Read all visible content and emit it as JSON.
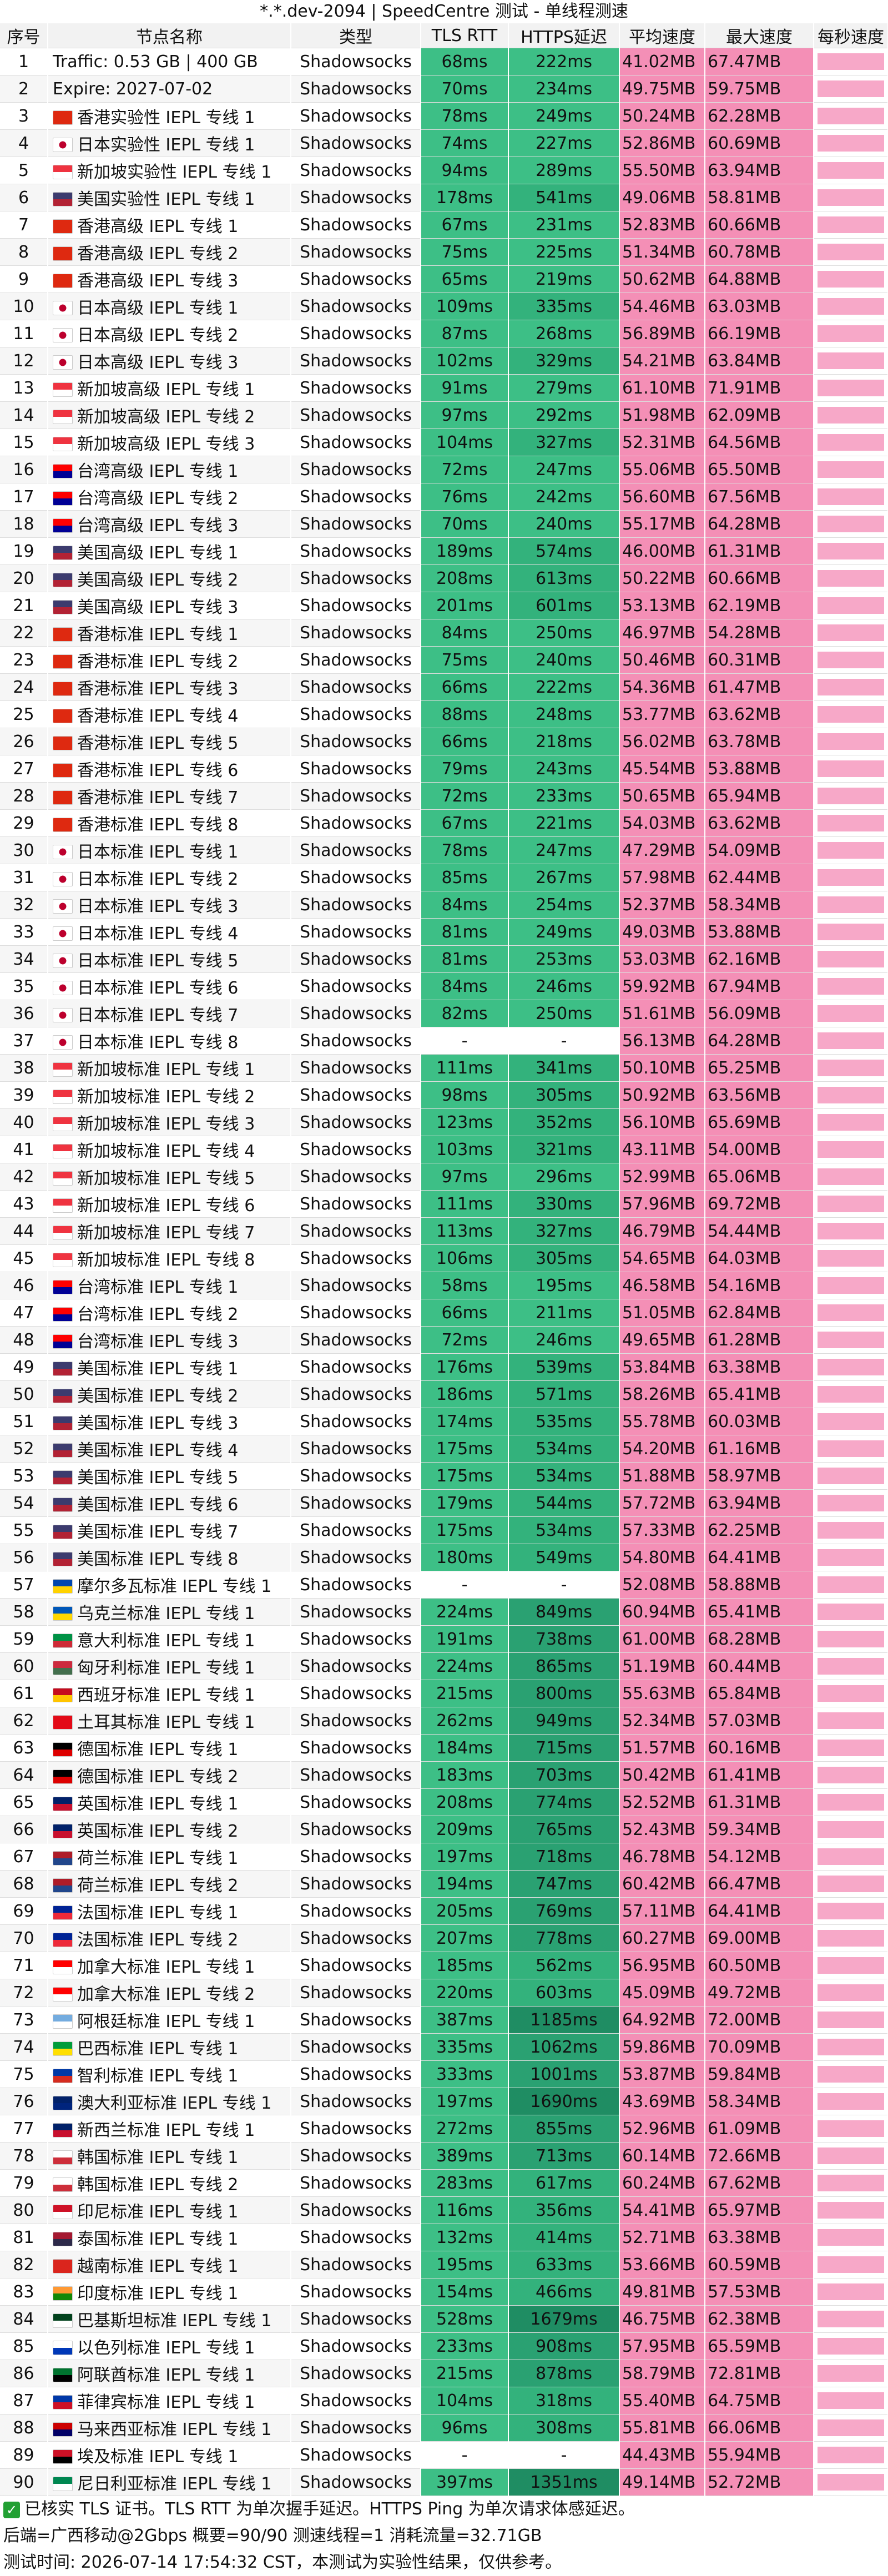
{
  "title": "*.*.dev-2094 | SpeedCentre 测试 - 单线程测速",
  "headers": {
    "id": "序号",
    "name": "节点名称",
    "type": "类型",
    "tls": "TLS RTT",
    "ping": "HTTPS延迟",
    "avg": "平均速度",
    "max": "最大速度",
    "ppm": "每秒速度"
  },
  "colors": {
    "tls_green": "#3dbf86",
    "ping_green": "#2faa76",
    "speed_pink": "#f48fb6",
    "header_bg": "#f2f2f2"
  },
  "rows": [
    {
      "id": "1",
      "name": "Traffic: 0.53 GB | 400 GB",
      "flag": "",
      "type": "Shadowsocks",
      "tls": "68ms",
      "ping": "222ms",
      "avg": "41.02MB",
      "max": "67.47MB"
    },
    {
      "id": "2",
      "name": "Expire: 2027-07-02",
      "flag": "",
      "type": "Shadowsocks",
      "tls": "70ms",
      "ping": "234ms",
      "avg": "49.75MB",
      "max": "59.75MB"
    },
    {
      "id": "3",
      "name": "香港实验性 IEPL 专线 1",
      "flag": "hk",
      "type": "Shadowsocks",
      "tls": "78ms",
      "ping": "249ms",
      "avg": "50.24MB",
      "max": "62.28MB"
    },
    {
      "id": "4",
      "name": "日本实验性 IEPL 专线 1",
      "flag": "jp",
      "type": "Shadowsocks",
      "tls": "74ms",
      "ping": "227ms",
      "avg": "52.86MB",
      "max": "60.69MB"
    },
    {
      "id": "5",
      "name": "新加坡实验性 IEPL 专线 1",
      "flag": "sg",
      "type": "Shadowsocks",
      "tls": "94ms",
      "ping": "289ms",
      "avg": "55.50MB",
      "max": "63.94MB"
    },
    {
      "id": "6",
      "name": "美国实验性 IEPL 专线 1",
      "flag": "us",
      "type": "Shadowsocks",
      "tls": "178ms",
      "ping": "541ms",
      "avg": "49.06MB",
      "max": "58.81MB"
    },
    {
      "id": "7",
      "name": "香港高级 IEPL 专线 1",
      "flag": "hk",
      "type": "Shadowsocks",
      "tls": "67ms",
      "ping": "231ms",
      "avg": "52.83MB",
      "max": "60.66MB"
    },
    {
      "id": "8",
      "name": "香港高级 IEPL 专线 2",
      "flag": "hk",
      "type": "Shadowsocks",
      "tls": "75ms",
      "ping": "225ms",
      "avg": "51.34MB",
      "max": "60.78MB"
    },
    {
      "id": "9",
      "name": "香港高级 IEPL 专线 3",
      "flag": "hk",
      "type": "Shadowsocks",
      "tls": "65ms",
      "ping": "219ms",
      "avg": "50.62MB",
      "max": "64.88MB"
    },
    {
      "id": "10",
      "name": "日本高级 IEPL 专线 1",
      "flag": "jp",
      "type": "Shadowsocks",
      "tls": "109ms",
      "ping": "335ms",
      "avg": "54.46MB",
      "max": "63.03MB"
    },
    {
      "id": "11",
      "name": "日本高级 IEPL 专线 2",
      "flag": "jp",
      "type": "Shadowsocks",
      "tls": "87ms",
      "ping": "268ms",
      "avg": "56.89MB",
      "max": "66.19MB"
    },
    {
      "id": "12",
      "name": "日本高级 IEPL 专线 3",
      "flag": "jp",
      "type": "Shadowsocks",
      "tls": "102ms",
      "ping": "329ms",
      "avg": "54.21MB",
      "max": "63.84MB"
    },
    {
      "id": "13",
      "name": "新加坡高级 IEPL 专线 1",
      "flag": "sg",
      "type": "Shadowsocks",
      "tls": "91ms",
      "ping": "279ms",
      "avg": "61.10MB",
      "max": "71.91MB"
    },
    {
      "id": "14",
      "name": "新加坡高级 IEPL 专线 2",
      "flag": "sg",
      "type": "Shadowsocks",
      "tls": "97ms",
      "ping": "292ms",
      "avg": "51.98MB",
      "max": "62.09MB"
    },
    {
      "id": "15",
      "name": "新加坡高级 IEPL 专线 3",
      "flag": "sg",
      "type": "Shadowsocks",
      "tls": "104ms",
      "ping": "327ms",
      "avg": "52.31MB",
      "max": "64.56MB"
    },
    {
      "id": "16",
      "name": "台湾高级 IEPL 专线 1",
      "flag": "tw",
      "type": "Shadowsocks",
      "tls": "72ms",
      "ping": "247ms",
      "avg": "55.06MB",
      "max": "65.50MB"
    },
    {
      "id": "17",
      "name": "台湾高级 IEPL 专线 2",
      "flag": "tw",
      "type": "Shadowsocks",
      "tls": "76ms",
      "ping": "242ms",
      "avg": "56.60MB",
      "max": "67.56MB"
    },
    {
      "id": "18",
      "name": "台湾高级 IEPL 专线 3",
      "flag": "tw",
      "type": "Shadowsocks",
      "tls": "70ms",
      "ping": "240ms",
      "avg": "55.17MB",
      "max": "64.28MB"
    },
    {
      "id": "19",
      "name": "美国高级 IEPL 专线 1",
      "flag": "us",
      "type": "Shadowsocks",
      "tls": "189ms",
      "ping": "574ms",
      "avg": "46.00MB",
      "max": "61.31MB"
    },
    {
      "id": "20",
      "name": "美国高级 IEPL 专线 2",
      "flag": "us",
      "type": "Shadowsocks",
      "tls": "208ms",
      "ping": "613ms",
      "avg": "50.22MB",
      "max": "60.66MB"
    },
    {
      "id": "21",
      "name": "美国高级 IEPL 专线 3",
      "flag": "us",
      "type": "Shadowsocks",
      "tls": "201ms",
      "ping": "601ms",
      "avg": "53.13MB",
      "max": "62.19MB"
    },
    {
      "id": "22",
      "name": "香港标准 IEPL 专线 1",
      "flag": "hk",
      "type": "Shadowsocks",
      "tls": "84ms",
      "ping": "250ms",
      "avg": "46.97MB",
      "max": "54.28MB"
    },
    {
      "id": "23",
      "name": "香港标准 IEPL 专线 2",
      "flag": "hk",
      "type": "Shadowsocks",
      "tls": "75ms",
      "ping": "240ms",
      "avg": "50.46MB",
      "max": "60.31MB"
    },
    {
      "id": "24",
      "name": "香港标准 IEPL 专线 3",
      "flag": "hk",
      "type": "Shadowsocks",
      "tls": "66ms",
      "ping": "222ms",
      "avg": "54.36MB",
      "max": "61.47MB"
    },
    {
      "id": "25",
      "name": "香港标准 IEPL 专线 4",
      "flag": "hk",
      "type": "Shadowsocks",
      "tls": "88ms",
      "ping": "248ms",
      "avg": "53.77MB",
      "max": "63.62MB"
    },
    {
      "id": "26",
      "name": "香港标准 IEPL 专线 5",
      "flag": "hk",
      "type": "Shadowsocks",
      "tls": "66ms",
      "ping": "218ms",
      "avg": "56.02MB",
      "max": "63.78MB"
    },
    {
      "id": "27",
      "name": "香港标准 IEPL 专线 6",
      "flag": "hk",
      "type": "Shadowsocks",
      "tls": "79ms",
      "ping": "243ms",
      "avg": "45.54MB",
      "max": "53.88MB"
    },
    {
      "id": "28",
      "name": "香港标准 IEPL 专线 7",
      "flag": "hk",
      "type": "Shadowsocks",
      "tls": "72ms",
      "ping": "233ms",
      "avg": "50.65MB",
      "max": "65.94MB"
    },
    {
      "id": "29",
      "name": "香港标准 IEPL 专线 8",
      "flag": "hk",
      "type": "Shadowsocks",
      "tls": "67ms",
      "ping": "221ms",
      "avg": "54.03MB",
      "max": "63.62MB"
    },
    {
      "id": "30",
      "name": "日本标准 IEPL 专线 1",
      "flag": "jp",
      "type": "Shadowsocks",
      "tls": "78ms",
      "ping": "247ms",
      "avg": "47.29MB",
      "max": "54.09MB"
    },
    {
      "id": "31",
      "name": "日本标准 IEPL 专线 2",
      "flag": "jp",
      "type": "Shadowsocks",
      "tls": "85ms",
      "ping": "267ms",
      "avg": "57.98MB",
      "max": "62.44MB"
    },
    {
      "id": "32",
      "name": "日本标准 IEPL 专线 3",
      "flag": "jp",
      "type": "Shadowsocks",
      "tls": "84ms",
      "ping": "254ms",
      "avg": "52.37MB",
      "max": "58.34MB"
    },
    {
      "id": "33",
      "name": "日本标准 IEPL 专线 4",
      "flag": "jp",
      "type": "Shadowsocks",
      "tls": "81ms",
      "ping": "249ms",
      "avg": "49.03MB",
      "max": "53.88MB"
    },
    {
      "id": "34",
      "name": "日本标准 IEPL 专线 5",
      "flag": "jp",
      "type": "Shadowsocks",
      "tls": "81ms",
      "ping": "253ms",
      "avg": "53.03MB",
      "max": "62.16MB"
    },
    {
      "id": "35",
      "name": "日本标准 IEPL 专线 6",
      "flag": "jp",
      "type": "Shadowsocks",
      "tls": "84ms",
      "ping": "246ms",
      "avg": "59.92MB",
      "max": "67.94MB"
    },
    {
      "id": "36",
      "name": "日本标准 IEPL 专线 7",
      "flag": "jp",
      "type": "Shadowsocks",
      "tls": "82ms",
      "ping": "250ms",
      "avg": "51.61MB",
      "max": "56.09MB"
    },
    {
      "id": "37",
      "name": "日本标准 IEPL 专线 8",
      "flag": "jp",
      "type": "Shadowsocks",
      "tls": "-",
      "ping": "-",
      "avg": "56.13MB",
      "max": "64.28MB"
    },
    {
      "id": "38",
      "name": "新加坡标准 IEPL 专线 1",
      "flag": "sg",
      "type": "Shadowsocks",
      "tls": "111ms",
      "ping": "341ms",
      "avg": "50.10MB",
      "max": "65.25MB"
    },
    {
      "id": "39",
      "name": "新加坡标准 IEPL 专线 2",
      "flag": "sg",
      "type": "Shadowsocks",
      "tls": "98ms",
      "ping": "305ms",
      "avg": "50.92MB",
      "max": "63.56MB"
    },
    {
      "id": "40",
      "name": "新加坡标准 IEPL 专线 3",
      "flag": "sg",
      "type": "Shadowsocks",
      "tls": "123ms",
      "ping": "352ms",
      "avg": "56.10MB",
      "max": "65.69MB"
    },
    {
      "id": "41",
      "name": "新加坡标准 IEPL 专线 4",
      "flag": "sg",
      "type": "Shadowsocks",
      "tls": "103ms",
      "ping": "321ms",
      "avg": "43.11MB",
      "max": "54.00MB"
    },
    {
      "id": "42",
      "name": "新加坡标准 IEPL 专线 5",
      "flag": "sg",
      "type": "Shadowsocks",
      "tls": "97ms",
      "ping": "296ms",
      "avg": "52.99MB",
      "max": "65.06MB"
    },
    {
      "id": "43",
      "name": "新加坡标准 IEPL 专线 6",
      "flag": "sg",
      "type": "Shadowsocks",
      "tls": "111ms",
      "ping": "330ms",
      "avg": "57.96MB",
      "max": "69.72MB"
    },
    {
      "id": "44",
      "name": "新加坡标准 IEPL 专线 7",
      "flag": "sg",
      "type": "Shadowsocks",
      "tls": "113ms",
      "ping": "327ms",
      "avg": "46.79MB",
      "max": "54.44MB"
    },
    {
      "id": "45",
      "name": "新加坡标准 IEPL 专线 8",
      "flag": "sg",
      "type": "Shadowsocks",
      "tls": "106ms",
      "ping": "305ms",
      "avg": "54.65MB",
      "max": "64.03MB"
    },
    {
      "id": "46",
      "name": "台湾标准 IEPL 专线 1",
      "flag": "tw",
      "type": "Shadowsocks",
      "tls": "58ms",
      "ping": "195ms",
      "avg": "46.58MB",
      "max": "54.16MB"
    },
    {
      "id": "47",
      "name": "台湾标准 IEPL 专线 2",
      "flag": "tw",
      "type": "Shadowsocks",
      "tls": "66ms",
      "ping": "211ms",
      "avg": "51.05MB",
      "max": "62.84MB"
    },
    {
      "id": "48",
      "name": "台湾标准 IEPL 专线 3",
      "flag": "tw",
      "type": "Shadowsocks",
      "tls": "72ms",
      "ping": "246ms",
      "avg": "49.65MB",
      "max": "61.28MB"
    },
    {
      "id": "49",
      "name": "美国标准 IEPL 专线 1",
      "flag": "us",
      "type": "Shadowsocks",
      "tls": "176ms",
      "ping": "539ms",
      "avg": "53.84MB",
      "max": "63.38MB"
    },
    {
      "id": "50",
      "name": "美国标准 IEPL 专线 2",
      "flag": "us",
      "type": "Shadowsocks",
      "tls": "186ms",
      "ping": "571ms",
      "avg": "58.26MB",
      "max": "65.41MB"
    },
    {
      "id": "51",
      "name": "美国标准 IEPL 专线 3",
      "flag": "us",
      "type": "Shadowsocks",
      "tls": "174ms",
      "ping": "535ms",
      "avg": "55.78MB",
      "max": "60.03MB"
    },
    {
      "id": "52",
      "name": "美国标准 IEPL 专线 4",
      "flag": "us",
      "type": "Shadowsocks",
      "tls": "175ms",
      "ping": "534ms",
      "avg": "54.20MB",
      "max": "61.16MB"
    },
    {
      "id": "53",
      "name": "美国标准 IEPL 专线 5",
      "flag": "us",
      "type": "Shadowsocks",
      "tls": "175ms",
      "ping": "534ms",
      "avg": "51.88MB",
      "max": "58.97MB"
    },
    {
      "id": "54",
      "name": "美国标准 IEPL 专线 6",
      "flag": "us",
      "type": "Shadowsocks",
      "tls": "179ms",
      "ping": "544ms",
      "avg": "57.72MB",
      "max": "63.94MB"
    },
    {
      "id": "55",
      "name": "美国标准 IEPL 专线 7",
      "flag": "us",
      "type": "Shadowsocks",
      "tls": "175ms",
      "ping": "534ms",
      "avg": "57.33MB",
      "max": "62.25MB"
    },
    {
      "id": "56",
      "name": "美国标准 IEPL 专线 8",
      "flag": "us",
      "type": "Shadowsocks",
      "tls": "180ms",
      "ping": "549ms",
      "avg": "54.80MB",
      "max": "64.41MB"
    },
    {
      "id": "57",
      "name": "摩尔多瓦标准 IEPL 专线 1",
      "flag": "md",
      "type": "Shadowsocks",
      "tls": "-",
      "ping": "-",
      "avg": "52.08MB",
      "max": "58.88MB"
    },
    {
      "id": "58",
      "name": "乌克兰标准 IEPL 专线 1",
      "flag": "ua",
      "type": "Shadowsocks",
      "tls": "224ms",
      "ping": "849ms",
      "avg": "60.94MB",
      "max": "65.41MB"
    },
    {
      "id": "59",
      "name": "意大利标准 IEPL 专线 1",
      "flag": "it",
      "type": "Shadowsocks",
      "tls": "191ms",
      "ping": "738ms",
      "avg": "61.00MB",
      "max": "68.28MB"
    },
    {
      "id": "60",
      "name": "匈牙利标准 IEPL 专线 1",
      "flag": "hu",
      "type": "Shadowsocks",
      "tls": "224ms",
      "ping": "865ms",
      "avg": "51.19MB",
      "max": "60.44MB"
    },
    {
      "id": "61",
      "name": "西班牙标准 IEPL 专线 1",
      "flag": "es",
      "type": "Shadowsocks",
      "tls": "215ms",
      "ping": "800ms",
      "avg": "55.63MB",
      "max": "65.84MB"
    },
    {
      "id": "62",
      "name": "土耳其标准 IEPL 专线 1",
      "flag": "tr",
      "type": "Shadowsocks",
      "tls": "262ms",
      "ping": "949ms",
      "avg": "52.34MB",
      "max": "57.03MB"
    },
    {
      "id": "63",
      "name": "德国标准 IEPL 专线 1",
      "flag": "de",
      "type": "Shadowsocks",
      "tls": "184ms",
      "ping": "715ms",
      "avg": "51.57MB",
      "max": "60.16MB"
    },
    {
      "id": "64",
      "name": "德国标准 IEPL 专线 2",
      "flag": "de",
      "type": "Shadowsocks",
      "tls": "183ms",
      "ping": "703ms",
      "avg": "50.42MB",
      "max": "61.41MB"
    },
    {
      "id": "65",
      "name": "英国标准 IEPL 专线 1",
      "flag": "gb",
      "type": "Shadowsocks",
      "tls": "208ms",
      "ping": "774ms",
      "avg": "52.52MB",
      "max": "61.31MB"
    },
    {
      "id": "66",
      "name": "英国标准 IEPL 专线 2",
      "flag": "gb",
      "type": "Shadowsocks",
      "tls": "209ms",
      "ping": "765ms",
      "avg": "52.43MB",
      "max": "59.34MB"
    },
    {
      "id": "67",
      "name": "荷兰标准 IEPL 专线 1",
      "flag": "nl",
      "type": "Shadowsocks",
      "tls": "197ms",
      "ping": "718ms",
      "avg": "46.78MB",
      "max": "54.12MB"
    },
    {
      "id": "68",
      "name": "荷兰标准 IEPL 专线 2",
      "flag": "nl",
      "type": "Shadowsocks",
      "tls": "194ms",
      "ping": "747ms",
      "avg": "60.42MB",
      "max": "66.47MB"
    },
    {
      "id": "69",
      "name": "法国标准 IEPL 专线 1",
      "flag": "fr",
      "type": "Shadowsocks",
      "tls": "205ms",
      "ping": "769ms",
      "avg": "57.11MB",
      "max": "64.41MB"
    },
    {
      "id": "70",
      "name": "法国标准 IEPL 专线 2",
      "flag": "fr",
      "type": "Shadowsocks",
      "tls": "207ms",
      "ping": "778ms",
      "avg": "60.27MB",
      "max": "69.00MB"
    },
    {
      "id": "71",
      "name": "加拿大标准 IEPL 专线 1",
      "flag": "ca",
      "type": "Shadowsocks",
      "tls": "185ms",
      "ping": "562ms",
      "avg": "56.95MB",
      "max": "60.50MB"
    },
    {
      "id": "72",
      "name": "加拿大标准 IEPL 专线 2",
      "flag": "ca",
      "type": "Shadowsocks",
      "tls": "220ms",
      "ping": "603ms",
      "avg": "45.09MB",
      "max": "49.72MB"
    },
    {
      "id": "73",
      "name": "阿根廷标准 IEPL 专线 1",
      "flag": "ar",
      "type": "Shadowsocks",
      "tls": "387ms",
      "ping": "1185ms",
      "avg": "64.92MB",
      "max": "72.00MB"
    },
    {
      "id": "74",
      "name": "巴西标准 IEPL 专线 1",
      "flag": "br",
      "type": "Shadowsocks",
      "tls": "335ms",
      "ping": "1062ms",
      "avg": "59.86MB",
      "max": "70.09MB"
    },
    {
      "id": "75",
      "name": "智利标准 IEPL 专线 1",
      "flag": "cl",
      "type": "Shadowsocks",
      "tls": "333ms",
      "ping": "1001ms",
      "avg": "53.87MB",
      "max": "59.84MB"
    },
    {
      "id": "76",
      "name": "澳大利亚标准 IEPL 专线 1",
      "flag": "au",
      "type": "Shadowsocks",
      "tls": "197ms",
      "ping": "1690ms",
      "avg": "43.69MB",
      "max": "58.34MB"
    },
    {
      "id": "77",
      "name": "新西兰标准 IEPL 专线 1",
      "flag": "nz",
      "type": "Shadowsocks",
      "tls": "272ms",
      "ping": "855ms",
      "avg": "52.96MB",
      "max": "61.09MB"
    },
    {
      "id": "78",
      "name": "韩国标准 IEPL 专线 1",
      "flag": "kr",
      "type": "Shadowsocks",
      "tls": "389ms",
      "ping": "713ms",
      "avg": "60.14MB",
      "max": "72.66MB"
    },
    {
      "id": "79",
      "name": "韩国标准 IEPL 专线 2",
      "flag": "kr",
      "type": "Shadowsocks",
      "tls": "283ms",
      "ping": "617ms",
      "avg": "60.24MB",
      "max": "67.62MB"
    },
    {
      "id": "80",
      "name": "印尼标准 IEPL 专线 1",
      "flag": "id",
      "type": "Shadowsocks",
      "tls": "116ms",
      "ping": "356ms",
      "avg": "54.41MB",
      "max": "65.97MB"
    },
    {
      "id": "81",
      "name": "泰国标准 IEPL 专线 1",
      "flag": "th",
      "type": "Shadowsocks",
      "tls": "132ms",
      "ping": "414ms",
      "avg": "52.71MB",
      "max": "63.38MB"
    },
    {
      "id": "82",
      "name": "越南标准 IEPL 专线 1",
      "flag": "vn",
      "type": "Shadowsocks",
      "tls": "195ms",
      "ping": "633ms",
      "avg": "53.66MB",
      "max": "60.59MB"
    },
    {
      "id": "83",
      "name": "印度标准 IEPL 专线 1",
      "flag": "in",
      "type": "Shadowsocks",
      "tls": "154ms",
      "ping": "466ms",
      "avg": "49.81MB",
      "max": "57.53MB"
    },
    {
      "id": "84",
      "name": "巴基斯坦标准 IEPL 专线 1",
      "flag": "pk",
      "type": "Shadowsocks",
      "tls": "528ms",
      "ping": "1679ms",
      "avg": "46.75MB",
      "max": "62.38MB"
    },
    {
      "id": "85",
      "name": "以色列标准 IEPL 专线 1",
      "flag": "il",
      "type": "Shadowsocks",
      "tls": "233ms",
      "ping": "908ms",
      "avg": "57.95MB",
      "max": "65.59MB"
    },
    {
      "id": "86",
      "name": "阿联酋标准 IEPL 专线 1",
      "flag": "ae",
      "type": "Shadowsocks",
      "tls": "215ms",
      "ping": "878ms",
      "avg": "58.79MB",
      "max": "72.81MB"
    },
    {
      "id": "87",
      "name": "菲律宾标准 IEPL 专线 1",
      "flag": "ph",
      "type": "Shadowsocks",
      "tls": "104ms",
      "ping": "318ms",
      "avg": "55.40MB",
      "max": "64.75MB"
    },
    {
      "id": "88",
      "name": "马来西亚标准 IEPL 专线 1",
      "flag": "my",
      "type": "Shadowsocks",
      "tls": "96ms",
      "ping": "308ms",
      "avg": "55.81MB",
      "max": "66.06MB"
    },
    {
      "id": "89",
      "name": "埃及标准 IEPL 专线 1",
      "flag": "eg",
      "type": "Shadowsocks",
      "tls": "-",
      "ping": "-",
      "avg": "44.43MB",
      "max": "55.94MB"
    },
    {
      "id": "90",
      "name": "尼日利亚标准 IEPL 专线 1",
      "flag": "ng",
      "type": "Shadowsocks",
      "tls": "397ms",
      "ping": "1351ms",
      "avg": "49.14MB",
      "max": "52.72MB"
    }
  ],
  "footer": {
    "note": "已核实 TLS 证书。TLS RTT 为单次握手延迟。HTTPS Ping 为单次请求体感延迟。",
    "summary": "后端=广西移动@2Gbps 概要=90/90 测速线程=1 消耗流量=32.71GB",
    "time": "测试时间: 2026-07-14 17:54:32 CST，本测试为实验性结果，仅供参考。"
  }
}
